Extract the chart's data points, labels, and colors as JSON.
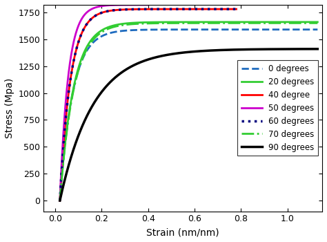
{
  "xlabel": "Strain (nm/nm)",
  "ylabel": "Stress (Mpa)",
  "xlim": [
    -0.05,
    1.15
  ],
  "ylim": [
    -100,
    1820
  ],
  "xticks": [
    0.0,
    0.2,
    0.4,
    0.6,
    0.8,
    1.0
  ],
  "yticks": [
    0,
    250,
    500,
    750,
    1000,
    1250,
    1500,
    1750
  ],
  "legend_loc": "center right",
  "legend_fontsize": 8.5,
  "figsize": [
    4.74,
    3.5
  ],
  "dpi": 100,
  "curve_params": [
    {
      "label": "0 degrees",
      "color": "#1e6bbf",
      "linestyle": "--",
      "lw": 2.0,
      "x0": 0.02,
      "x_end": 1.13,
      "smax": 1590,
      "k": 18.0
    },
    {
      "label": "20 degrees",
      "color": "#32cd32",
      "linestyle": "-",
      "lw": 2.0,
      "x0": 0.02,
      "x_end": 1.13,
      "smax": 1660,
      "k": 17.0
    },
    {
      "label": "40 degree",
      "color": "#ff0000",
      "linestyle": "-",
      "lw": 2.0,
      "x0": 0.02,
      "x_end": 0.78,
      "smax": 1780,
      "k": 22.0
    },
    {
      "label": "50 degrees",
      "color": "#cc00cc",
      "linestyle": "-",
      "lw": 2.0,
      "x0": 0.02,
      "x_end": 0.4,
      "smax": 1820,
      "k": 28.0
    },
    {
      "label": "60 degrees",
      "color": "#00007f",
      "linestyle": ":",
      "lw": 2.5,
      "x0": 0.02,
      "x_end": 0.78,
      "smax": 1780,
      "k": 22.0
    },
    {
      "label": "70 degrees",
      "color": "#32cd32",
      "linestyle": "-.",
      "lw": 2.0,
      "x0": 0.02,
      "x_end": 1.13,
      "smax": 1650,
      "k": 16.5
    },
    {
      "label": "90 degrees",
      "color": "#000000",
      "linestyle": "-",
      "lw": 2.5,
      "x0": 0.02,
      "x_end": 1.13,
      "smax": 1410,
      "k": 7.0
    }
  ]
}
